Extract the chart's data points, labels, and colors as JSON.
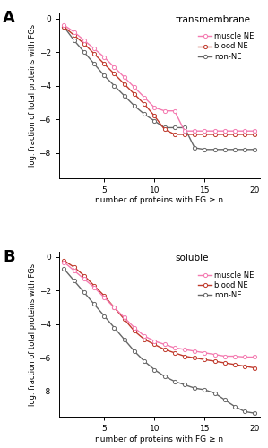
{
  "panel_A": {
    "title": "transmembrane",
    "muscle_NE": {
      "x": [
        1,
        2,
        3,
        4,
        5,
        6,
        7,
        8,
        9,
        10,
        11,
        12,
        13,
        14,
        15,
        16,
        17,
        18,
        19,
        20
      ],
      "y": [
        -0.4,
        -0.8,
        -1.3,
        -1.8,
        -2.3,
        -2.9,
        -3.5,
        -4.1,
        -4.7,
        -5.3,
        -5.5,
        -5.5,
        -6.7,
        -6.7,
        -6.7,
        -6.7,
        -6.7,
        -6.7,
        -6.7,
        -6.7
      ]
    },
    "blood_NE": {
      "x": [
        1,
        2,
        3,
        4,
        5,
        6,
        7,
        8,
        9,
        10,
        11,
        12,
        13,
        14,
        15,
        16,
        17,
        18,
        19,
        20
      ],
      "y": [
        -0.5,
        -1.0,
        -1.5,
        -2.1,
        -2.7,
        -3.3,
        -3.9,
        -4.5,
        -5.1,
        -5.8,
        -6.6,
        -6.9,
        -6.9,
        -6.9,
        -6.9,
        -6.9,
        -6.9,
        -6.9,
        -6.9,
        -6.9
      ]
    },
    "non_NE": {
      "x": [
        1,
        2,
        3,
        4,
        5,
        6,
        7,
        8,
        9,
        10,
        11,
        12,
        13,
        14,
        15,
        16,
        17,
        18,
        19,
        20
      ],
      "y": [
        -0.5,
        -1.3,
        -2.0,
        -2.7,
        -3.4,
        -4.0,
        -4.6,
        -5.2,
        -5.7,
        -6.1,
        -6.5,
        -6.5,
        -6.5,
        -7.7,
        -7.8,
        -7.8,
        -7.8,
        -7.8,
        -7.8,
        -7.8
      ]
    }
  },
  "panel_B": {
    "title": "soluble",
    "muscle_NE": {
      "x": [
        1,
        2,
        3,
        4,
        5,
        6,
        7,
        8,
        9,
        10,
        11,
        12,
        13,
        14,
        15,
        16,
        17,
        18,
        19,
        20
      ],
      "y": [
        -0.3,
        -0.8,
        -1.3,
        -1.8,
        -2.4,
        -3.0,
        -3.6,
        -4.2,
        -4.7,
        -5.0,
        -5.2,
        -5.4,
        -5.5,
        -5.6,
        -5.7,
        -5.8,
        -5.9,
        -5.9,
        -5.95,
        -5.95
      ]
    },
    "blood_NE": {
      "x": [
        1,
        2,
        3,
        4,
        5,
        6,
        7,
        8,
        9,
        10,
        11,
        12,
        13,
        14,
        15,
        16,
        17,
        18,
        19,
        20
      ],
      "y": [
        -0.2,
        -0.6,
        -1.1,
        -1.7,
        -2.3,
        -3.0,
        -3.7,
        -4.4,
        -4.9,
        -5.2,
        -5.5,
        -5.7,
        -5.9,
        -6.0,
        -6.1,
        -6.2,
        -6.3,
        -6.4,
        -6.5,
        -6.6
      ]
    },
    "non_NE": {
      "x": [
        1,
        2,
        3,
        4,
        5,
        6,
        7,
        8,
        9,
        10,
        11,
        12,
        13,
        14,
        15,
        16,
        17,
        18,
        19,
        20
      ],
      "y": [
        -0.7,
        -1.4,
        -2.1,
        -2.8,
        -3.5,
        -4.2,
        -4.9,
        -5.6,
        -6.2,
        -6.7,
        -7.1,
        -7.4,
        -7.6,
        -7.8,
        -7.9,
        -8.1,
        -8.5,
        -8.9,
        -9.2,
        -9.3
      ]
    }
  },
  "muscle_color": "#f47ab0",
  "blood_color": "#c0392b",
  "non_ne_color": "#666666",
  "ylim": [
    -9.5,
    0.3
  ],
  "xlim_min": 0.5,
  "xlim_max": 20.5,
  "yticks": [
    0,
    -2,
    -4,
    -6,
    -8
  ],
  "xticks": [
    5,
    10,
    15,
    20
  ],
  "ylabel": "log: fraction of total proteins with FGs",
  "xlabel": "number of proteins with FG ≥ n",
  "marker": "o",
  "markersize": 3.0,
  "linewidth": 1.0,
  "label_A": "A",
  "label_B": "B",
  "legend_labels": [
    "muscle NE",
    "blood NE",
    "non-NE"
  ]
}
